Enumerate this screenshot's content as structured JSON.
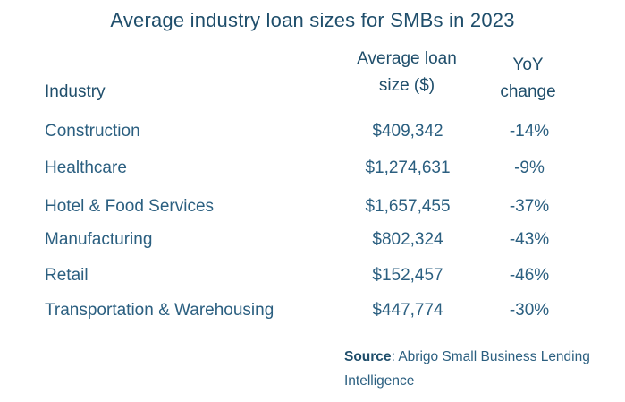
{
  "chart_data": {
    "type": "table",
    "title": "Average industry loan sizes for SMBs in 2023",
    "columns": [
      {
        "lines": [
          "Industry"
        ]
      },
      {
        "lines": [
          "Average loan",
          "size ($)"
        ]
      },
      {
        "lines": [
          "YoY",
          "change"
        ]
      }
    ],
    "rows": [
      {
        "industry": "Construction",
        "avg_loan": "$409,342",
        "yoy": "-14%",
        "avg_loan_value": 409342,
        "yoy_value": -14
      },
      {
        "industry": "Healthcare",
        "avg_loan": "$1,274,631",
        "yoy": "-9%",
        "avg_loan_value": 1274631,
        "yoy_value": -9
      },
      {
        "industry": "Hotel & Food Services",
        "avg_loan": "$1,657,455",
        "yoy": "-37%",
        "avg_loan_value": 1657455,
        "yoy_value": -37
      },
      {
        "industry": "Manufacturing",
        "avg_loan": "$802,324",
        "yoy": "-43%",
        "avg_loan_value": 802324,
        "yoy_value": -43
      },
      {
        "industry": "Retail",
        "avg_loan": "$152,457",
        "yoy": "-46%",
        "avg_loan_value": 152457,
        "yoy_value": -46
      },
      {
        "industry": "Transportation & Warehousing",
        "avg_loan": "$447,774",
        "yoy": "-30%",
        "avg_loan_value": 447774,
        "yoy_value": -30
      }
    ],
    "source_label": "Source",
    "source_text": ": Abrigo Small Business Lending Intelligence"
  },
  "colors": {
    "title": "#1f4e6b",
    "text": "#2b5f80",
    "background": "#ffffff"
  }
}
